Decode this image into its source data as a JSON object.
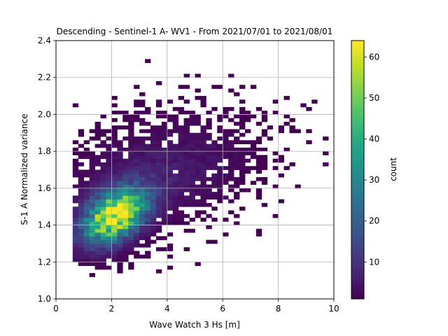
{
  "chart_data": {
    "type": "heatmap",
    "title": "Descending - Sentinel-1 A- WV1 - From 2021/07/01 to 2021/08/01",
    "xlabel": "Wave Watch 3 Hs [m]",
    "ylabel": "S-1 A Normalized variance",
    "xlim": [
      0,
      10
    ],
    "ylim": [
      1.0,
      2.4
    ],
    "xticks": [
      "0",
      "2",
      "4",
      "6",
      "8",
      "10"
    ],
    "yticks": [
      "1.0",
      "1.2",
      "1.4",
      "1.6",
      "1.8",
      "2.0",
      "2.2",
      "2.4"
    ],
    "grid": true,
    "bin_width_x": 0.2,
    "bin_height_y": 0.02,
    "colorbar": {
      "label": "count",
      "range": [
        1,
        64
      ],
      "ticks": [
        "10",
        "20",
        "30",
        "40",
        "50",
        "60"
      ],
      "colormap": "viridis"
    },
    "density_model": {
      "peak_hs": 2.1,
      "peak_variance": 1.45,
      "peak_count": 64,
      "trend_slope": 0.055,
      "background_center_variance": 1.66,
      "background_spread_hs": [
        0.6,
        9.6
      ]
    }
  },
  "colors": {
    "viridis_low": "#440154",
    "viridis_mid": "#21918c",
    "viridis_high": "#fde725",
    "grid": "#b0b0b0"
  }
}
